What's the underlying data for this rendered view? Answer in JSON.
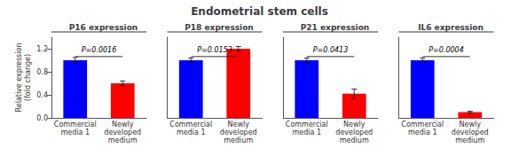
{
  "title": "Endometrial stem cells",
  "chart_data": [
    {
      "type": "bar",
      "title": "P16 expression",
      "ylabel": "Relative expression\n(fold change)",
      "categories": [
        "Commercial\nmedia 1",
        "Newly\ndeveloped\nmedium"
      ],
      "values": [
        1.0,
        0.6
      ],
      "errors": [
        0.05,
        0.04
      ],
      "colors": [
        "#0000FF",
        "#FF0000"
      ],
      "ylim": [
        0,
        1.4
      ],
      "yticks": [
        {
          "value": 0,
          "label": "0.0"
        },
        0.4,
        0.8,
        1.2
      ],
      "annotations": [
        "P=0.0016"
      ],
      "grid": false
    },
    {
      "type": "bar",
      "title": "P18 expression",
      "categories": [
        "Commercial\nmedia 1",
        "Newly\ndeveloped\nmedium"
      ],
      "values": [
        1.0,
        1.2
      ],
      "errors": [
        0.04,
        0.04
      ],
      "colors": [
        "#0000FF",
        "#FF0000"
      ],
      "ylim": [
        0,
        1.4
      ],
      "yticks": [
        0,
        0.4,
        0.8,
        1.2
      ],
      "annotations": [
        "P=0.0153"
      ],
      "grid": false,
      "tick_labels": "x"
    },
    {
      "type": "bar",
      "title": "P21 expression",
      "categories": [
        "Commercial\nmedia 1",
        "Newly\ndeveloped\nmedium"
      ],
      "values": [
        1.0,
        0.42
      ],
      "errors": [
        0.04,
        0.08
      ],
      "colors": [
        "#0000FF",
        "#FF0000"
      ],
      "ylim": [
        0,
        1.4
      ],
      "yticks": [
        0,
        0.4,
        0.8,
        1.2
      ],
      "annotations": [
        "P=0.0413"
      ],
      "grid": false,
      "tick_labels": "x"
    },
    {
      "type": "bar",
      "title": "IL6 expression",
      "categories": [
        "Commercial\nmedia 1",
        "Newly\ndeveloped\nmedium"
      ],
      "values": [
        1.0,
        0.1
      ],
      "errors": [
        0.04,
        0.015
      ],
      "colors": [
        "#0000FF",
        "#FF0000"
      ],
      "ylim": [
        0,
        1.4
      ],
      "yticks": [
        0,
        0.4,
        0.8,
        1.2
      ],
      "annotations": [
        "P=0.0004"
      ],
      "grid": false,
      "tick_labels": "x"
    }
  ]
}
